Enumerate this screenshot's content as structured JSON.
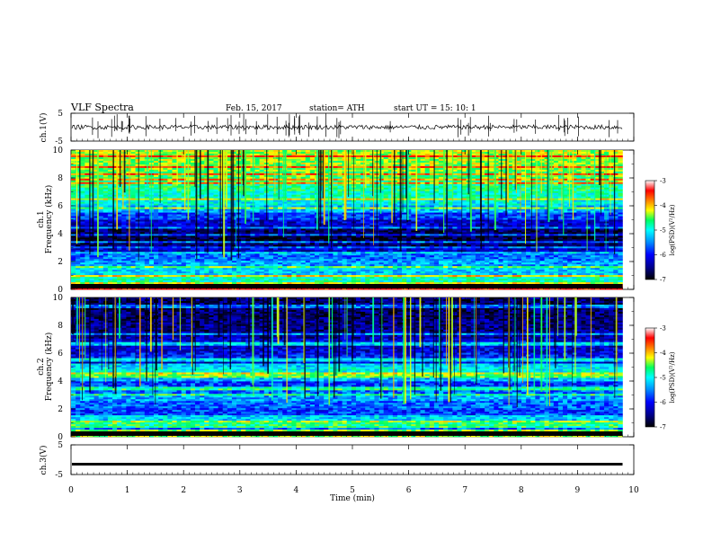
{
  "header": {
    "title": "VLF  Spectra",
    "date": "Feb. 15, 2017",
    "station": "station= ATH",
    "start": "start  UT  =    15: 10: 1"
  },
  "colors": {
    "background": "#ffffff",
    "trace": "#000000",
    "colormap": [
      "#000000",
      "#00008a",
      "#0000ff",
      "#0090ff",
      "#00ffff",
      "#00ff60",
      "#ffff00",
      "#ff8000",
      "#ff0000",
      "#ffffff"
    ]
  },
  "chart_data": [
    {
      "type": "line",
      "panel": "ch1-waveform",
      "ylabel": "ch.1(V)",
      "ylim": [
        -5,
        5
      ],
      "yticks": [
        "5",
        "-5"
      ],
      "xlim": [
        0,
        10
      ],
      "description_level": "noisy waveform centred near 0 V with spikes",
      "baseline": 0
    },
    {
      "type": "heatmap",
      "panel": "ch1-spectrogram",
      "ylabel_top": "ch.1",
      "ylabel": "Frequency (kHz)",
      "ylim": [
        0,
        10
      ],
      "yticks": [
        "0",
        "2",
        "4",
        "6",
        "8",
        "10"
      ],
      "xlim": [
        0,
        9.8
      ],
      "colorbar": {
        "label": "log(PSD)(V²/Hz)",
        "range": [
          -7,
          -3
        ],
        "ticks": [
          "-3",
          "-4",
          "-5",
          "-6",
          "-7"
        ]
      },
      "band_levels_kHz": [
        {
          "f": 0.5,
          "level": 0.75
        },
        {
          "f": 1.0,
          "level": 0.55
        },
        {
          "f": 1.5,
          "level": 0.45
        },
        {
          "f": 2.0,
          "level": 0.4
        },
        {
          "f": 2.5,
          "level": 0.35
        },
        {
          "f": 3.0,
          "level": 0.2
        },
        {
          "f": 3.5,
          "level": 0.1
        },
        {
          "f": 4.0,
          "level": 0.05
        },
        {
          "f": 4.5,
          "level": 0.1
        },
        {
          "f": 5.0,
          "level": 0.2
        },
        {
          "f": 5.5,
          "level": 0.3
        },
        {
          "f": 6.0,
          "level": 0.42
        },
        {
          "f": 6.5,
          "level": 0.5
        },
        {
          "f": 7.0,
          "level": 0.55
        },
        {
          "f": 7.5,
          "level": 0.58
        },
        {
          "f": 8.0,
          "level": 0.62
        },
        {
          "f": 8.5,
          "level": 0.65
        },
        {
          "f": 9.0,
          "level": 0.68
        },
        {
          "f": 9.5,
          "level": 0.7
        },
        {
          "f": 10.0,
          "level": 0.72
        }
      ]
    },
    {
      "type": "heatmap",
      "panel": "ch2-spectrogram",
      "ylabel_top": "ch.2",
      "ylabel": "Frequency (kHz)",
      "ylim": [
        0,
        10
      ],
      "yticks": [
        "0",
        "2",
        "4",
        "6",
        "8",
        "10"
      ],
      "xlim": [
        0,
        9.8
      ],
      "colorbar": {
        "label": "log(PSD)(V²/Hz)",
        "range": [
          -7,
          -3
        ],
        "ticks": [
          "-3",
          "-4",
          "-5",
          "-6",
          "-7"
        ]
      },
      "band_levels_kHz": [
        {
          "f": 0.5,
          "level": 0.45
        },
        {
          "f": 1.0,
          "level": 0.35
        },
        {
          "f": 1.5,
          "level": 0.45
        },
        {
          "f": 2.0,
          "level": 0.3
        },
        {
          "f": 2.5,
          "level": 0.35
        },
        {
          "f": 3.0,
          "level": 0.4
        },
        {
          "f": 3.5,
          "level": 0.35
        },
        {
          "f": 4.0,
          "level": 0.3
        },
        {
          "f": 4.5,
          "level": 0.42
        },
        {
          "f": 5.0,
          "level": 0.5
        },
        {
          "f": 5.5,
          "level": 0.2
        },
        {
          "f": 6.0,
          "level": 0.25
        },
        {
          "f": 6.5,
          "level": 0.2
        },
        {
          "f": 7.0,
          "level": 0.2
        },
        {
          "f": 7.5,
          "level": 0.15
        },
        {
          "f": 8.0,
          "level": 0.12
        },
        {
          "f": 8.5,
          "level": 0.12
        },
        {
          "f": 9.0,
          "level": 0.1
        },
        {
          "f": 9.5,
          "level": 0.1
        },
        {
          "f": 10.0,
          "level": 0.1
        }
      ]
    },
    {
      "type": "line",
      "panel": "ch3-waveform",
      "ylabel": "ch.3(V)",
      "ylim": [
        -5,
        5
      ],
      "yticks": [
        "5",
        "-5"
      ],
      "xlim": [
        0,
        10
      ],
      "baseline": -1.5
    }
  ],
  "xaxis": {
    "label": "Time  (min)",
    "ticks": [
      "0",
      "1",
      "2",
      "3",
      "4",
      "5",
      "6",
      "7",
      "8",
      "9",
      "10"
    ],
    "range": [
      0,
      10
    ]
  }
}
